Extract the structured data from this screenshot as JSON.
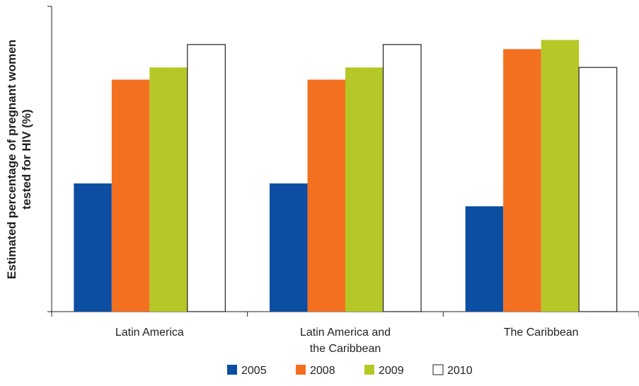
{
  "chart_data": {
    "type": "bar",
    "title": "",
    "xlabel": "",
    "ylabel_lines": [
      "Estimated percentage of pregnant women",
      "tested for HIV (%)"
    ],
    "ylim": [
      0,
      100
    ],
    "categories": [
      [
        "Latin America"
      ],
      [
        "Latin America and",
        "the Caribbean"
      ],
      [
        "The Caribbean"
      ]
    ],
    "series": [
      {
        "name": "2005",
        "color": "#0b4ea2",
        "values": [
          42,
          42,
          34.5
        ]
      },
      {
        "name": "2008",
        "color": "#f37021",
        "values": [
          76,
          76,
          86
        ]
      },
      {
        "name": "2009",
        "color": "#b5c827",
        "values": [
          80,
          80,
          89
        ]
      },
      {
        "name": "2010",
        "color": "#ffffff",
        "values": [
          87.5,
          87.5,
          80
        ]
      }
    ],
    "grid": false,
    "legend_position": "bottom"
  }
}
